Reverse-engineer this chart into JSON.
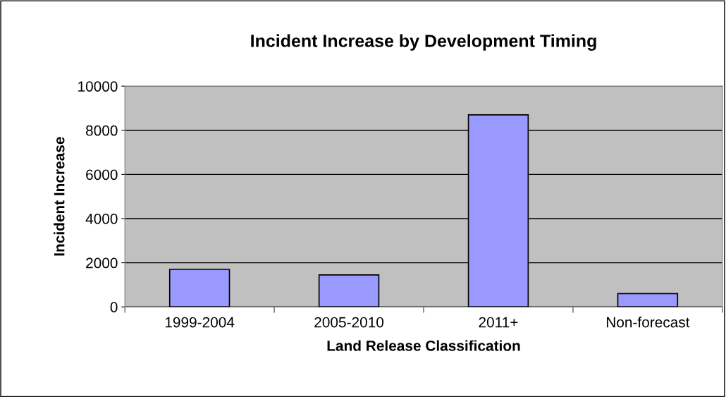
{
  "chart_data": {
    "type": "bar",
    "title": "Incident Increase by Development Timing",
    "xlabel": "Land Release Classification",
    "ylabel": "Incident Increase",
    "categories": [
      "1999-2004",
      "2005-2010",
      "2011+",
      "Non-forecast"
    ],
    "values": [
      1700,
      1450,
      8700,
      600
    ],
    "color": "#9999ff",
    "ylim": [
      0,
      10000
    ],
    "yticks": [
      0,
      2000,
      4000,
      6000,
      8000,
      10000
    ],
    "grid": "y"
  }
}
